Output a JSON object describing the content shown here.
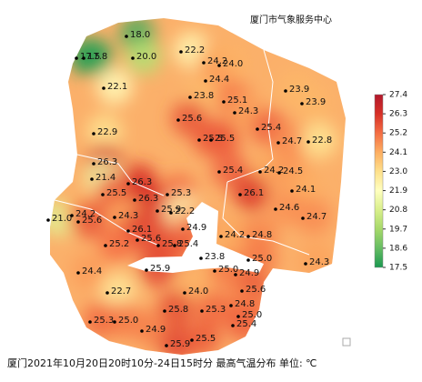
{
  "header": {
    "title": "厦门市气象服务中心"
  },
  "caption": "厦门2021年10月20日20时10分-24日15时分 最高气温分布 单位: ℃",
  "colorbar": {
    "ticks": [
      27.4,
      26.3,
      25.2,
      24.1,
      {
        "value": 23,
        "label": "23.0"
      },
      21.9,
      20.8,
      19.7,
      18.6,
      17.5
    ],
    "colors": [
      "#b2182b",
      "#d73027",
      "#f46d43",
      "#fdae61",
      "#fee08b",
      "#ffffbf",
      "#d9ef8b",
      "#a6d96a",
      "#66bd63",
      "#1a9850"
    ]
  },
  "stations": {
    "values": [
      18,
      17.5,
      17.8,
      20,
      22.2,
      24.2,
      24,
      24.4,
      22.1,
      23.8,
      25.1,
      24.3,
      23.9,
      23.9,
      25.6,
      25.4,
      22.9,
      25.5,
      25.5,
      24.7,
      22.8,
      26.3,
      25.4,
      24.2,
      24.5,
      21.4,
      26.3,
      24.1,
      25.5,
      26.1,
      25.3,
      26.3,
      24.6,
      25.9,
      22.2,
      21,
      24.2,
      24.3,
      25.6,
      24.7,
      26.1,
      24.9,
      24.2,
      24.8,
      25.2,
      25.6,
      25.8,
      25.4,
      24.3,
      25,
      23.8,
      24.4,
      25.9,
      25,
      24.9,
      22.7,
      25.6,
      24,
      24.8,
      25,
      25.8,
      25.3,
      25.4,
      25.3,
      25,
      24.9,
      25.9,
      25.5
    ],
    "value_labels": [
      "18.0",
      "17.5",
      "17.8",
      "20.0",
      "22.2",
      "24.2",
      "24.0",
      "24.4",
      "22.1",
      "23.8",
      "25.1",
      "24.3",
      "23.9",
      "23.9",
      "25.6",
      "25.4",
      "22.9",
      "25.5",
      "25.5",
      "24.7",
      "22.8",
      "26.3",
      "25.4",
      "24.2",
      "24.5",
      "21.4",
      "26.3",
      "24.1",
      "25.5",
      "26.1",
      "25.3",
      "26.3",
      "24.6",
      "25.9",
      "22.2",
      "21.0",
      "24.2",
      "24.3",
      "25.6",
      "24.7",
      "26.1",
      "24.9",
      "24.2",
      "24.8",
      "25.2",
      "25.6",
      "25.8",
      "25.4",
      "24.3",
      "25.0",
      "23.8",
      "24.4",
      "25.9",
      "25.0",
      "24.9",
      "22.7",
      "25.6",
      "24.0",
      "24.8",
      "25.0",
      "25.8",
      "25.3",
      "25.4",
      "25.3",
      "25.0",
      "24.9",
      "25.9",
      "25.5"
    ]
  }
}
